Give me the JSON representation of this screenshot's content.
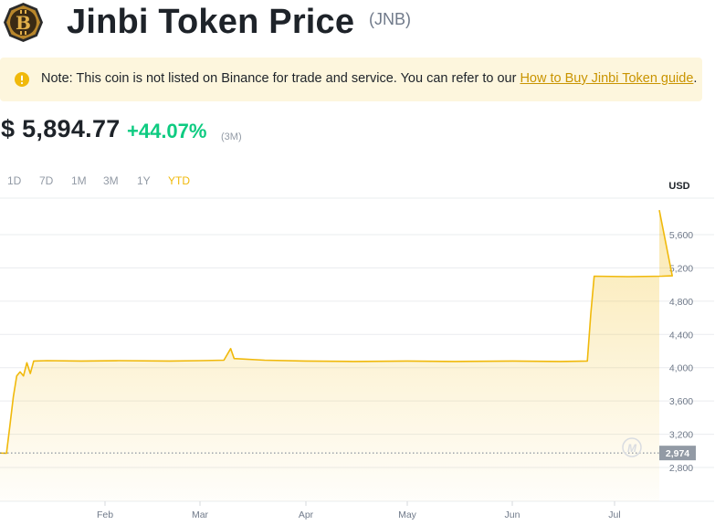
{
  "header": {
    "title": "Jinbi Token Price",
    "symbol": "(JNB)",
    "logo_icon": "jinbi-coin-logo"
  },
  "notice": {
    "icon": "info-warning-icon",
    "text": "Note: This coin is not listed on Binance for trade and service. You can refer to our ",
    "link_text": "How to Buy Jinbi Token guide",
    "suffix": "."
  },
  "price": {
    "value": "$ 5,894.77",
    "change": "+44.07%",
    "period": "(3M)"
  },
  "ranges": [
    "1D",
    "7D",
    "1M",
    "3M",
    "1Y",
    "YTD"
  ],
  "active_range": "YTD",
  "colors": {
    "accent": "#f0b90b",
    "positive": "#0ecb81",
    "text_primary": "#1e2329",
    "text_secondary": "#929aa5",
    "notice_bg": "#fdf6dd",
    "baseline_label_bg": "#929aa5"
  },
  "chart_data": {
    "type": "area",
    "currency_label": "USD",
    "y_ticks": [
      2800,
      3200,
      3600,
      4000,
      4400,
      4800,
      5200,
      5600
    ],
    "y_tick_labels": [
      "2,800",
      "3,200",
      "3,600",
      "4,000",
      "4,400",
      "4,800",
      "5,200",
      "5,600"
    ],
    "ylim": [
      2500,
      6000
    ],
    "x_ticks": [
      "Feb",
      "Mar",
      "Apr",
      "May",
      "Jun",
      "Jul"
    ],
    "baseline_value": 2974,
    "baseline_label": "2,974",
    "watermark_icon": "binance-watermark-icon",
    "series": [
      {
        "points": [
          [
            "2025-01-01",
            2974
          ],
          [
            "2025-01-03",
            2970
          ],
          [
            "2025-01-04",
            3300
          ],
          [
            "2025-01-05",
            3650
          ],
          [
            "2025-01-06",
            3900
          ],
          [
            "2025-01-07",
            3950
          ],
          [
            "2025-01-08",
            3900
          ],
          [
            "2025-01-09",
            4060
          ],
          [
            "2025-01-10",
            3930
          ],
          [
            "2025-01-11",
            4080
          ],
          [
            "2025-01-15",
            4085
          ],
          [
            "2025-01-25",
            4080
          ],
          [
            "2025-02-05",
            4085
          ],
          [
            "2025-02-20",
            4080
          ],
          [
            "2025-03-01",
            4085
          ],
          [
            "2025-03-08",
            4090
          ],
          [
            "2025-03-10",
            4230
          ],
          [
            "2025-03-11",
            4110
          ],
          [
            "2025-03-20",
            4090
          ],
          [
            "2025-04-01",
            4080
          ],
          [
            "2025-04-15",
            4075
          ],
          [
            "2025-05-01",
            4080
          ],
          [
            "2025-05-15",
            4075
          ],
          [
            "2025-06-01",
            4080
          ],
          [
            "2025-06-15",
            4075
          ],
          [
            "2025-06-23",
            4080
          ],
          [
            "2025-06-24",
            4650
          ],
          [
            "2025-06-25",
            5100
          ],
          [
            "2025-07-05",
            5095
          ],
          [
            "2025-07-15",
            5100
          ],
          [
            "2025-07-18",
            5105
          ],
          [
            "2025-07-19",
            5895
          ]
        ]
      }
    ]
  }
}
